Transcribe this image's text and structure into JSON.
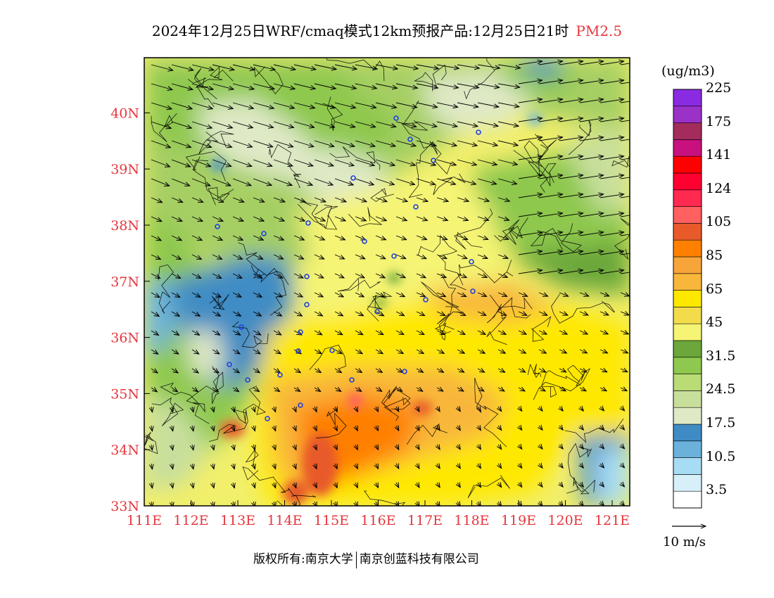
{
  "title": {
    "main": "2024年12月25日WRF/cmaq模式12km预报产品:12月25日21时",
    "species": "PM2.5",
    "species_color": "#e5363c"
  },
  "map": {
    "lon_labels": [
      "111E",
      "112E",
      "113E",
      "114E",
      "115E",
      "116E",
      "117E",
      "118E",
      "119E",
      "120E",
      "121E"
    ],
    "lat_labels": [
      "33N",
      "34N",
      "35N",
      "36N",
      "37N",
      "38N",
      "39N",
      "40N"
    ],
    "axis_label_color": "#e5363c"
  },
  "legend": {
    "unit": "(ug/m3)",
    "colors": [
      "#ffffff",
      "#d6eff9",
      "#a7dcf5",
      "#6ab2dc",
      "#3f8cc4",
      "#dfe9c6",
      "#c8df9c",
      "#b9dc75",
      "#8ec84e",
      "#6ba73a",
      "#f5f474",
      "#f2dc4c",
      "#ffe800",
      "#f8b73a",
      "#f7a53a",
      "#ff8000",
      "#e85a2a",
      "#ff6060",
      "#ff2a50",
      "#ff0030",
      "#ff0000",
      "#c8107e",
      "#a32c5c",
      "#9a32c8",
      "#8a2be2"
    ],
    "labels": [
      "3.5",
      "10.5",
      "17.5",
      "24.5",
      "31.5",
      "45",
      "65",
      "85",
      "105",
      "124",
      "141",
      "175",
      "225"
    ]
  },
  "vector_reference": {
    "label": "10 m/s"
  },
  "footer": {
    "copyright": "版权所有:南京大学",
    "company": "南京创蓝科技有限公司"
  }
}
